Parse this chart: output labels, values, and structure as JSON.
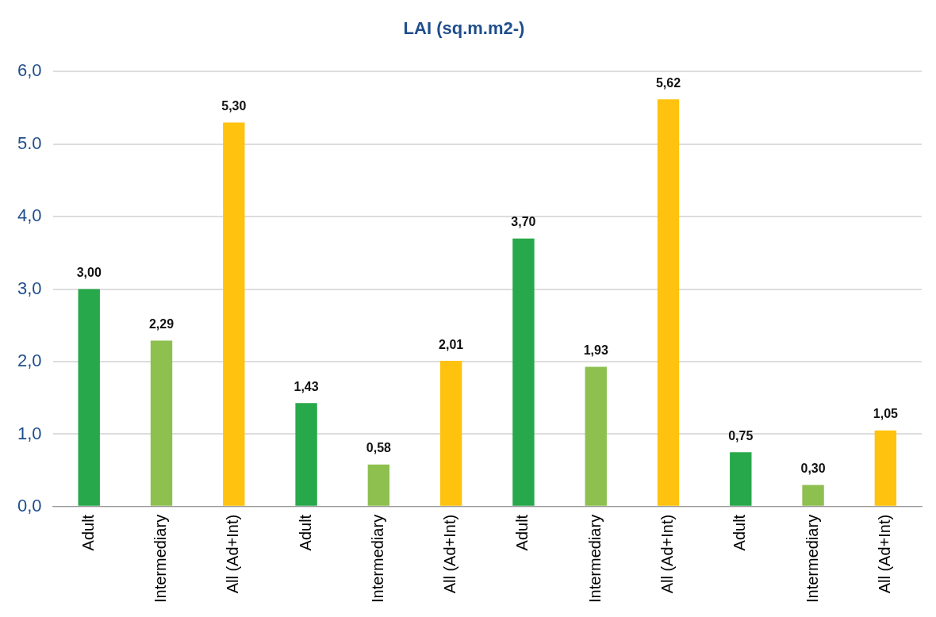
{
  "chart_data": {
    "type": "bar",
    "title": "LAI (sq.m.m2-)",
    "categories": [
      "Adult",
      "Intermediary",
      "All (Ad+Int)",
      "Adult",
      "Intermediary",
      "All (Ad+Int)",
      "Adult",
      "Intermediary",
      "All (Ad+Int)",
      "Adult",
      "Intermediary",
      "All (Ad+Int)"
    ],
    "values": [
      3.0,
      2.29,
      5.3,
      1.43,
      0.58,
      2.01,
      3.7,
      1.93,
      5.62,
      0.75,
      0.3,
      1.05
    ],
    "colors": [
      "#27a84a",
      "#8dc04f",
      "#ffc20e",
      "#27a84a",
      "#8dc04f",
      "#ffc20e",
      "#27a84a",
      "#8dc04f",
      "#ffc20e",
      "#27a84a",
      "#8dc04f",
      "#ffc20e"
    ],
    "value_labels": [
      "3,00",
      "2,29",
      "5,30",
      "1,43",
      "0,58",
      "2,01",
      "3,70",
      "1,93",
      "5,62",
      "0,75",
      "0,30",
      "1,05"
    ],
    "ylim": [
      0,
      6
    ],
    "yticks": [
      {
        "value": 0,
        "label": "0,0"
      },
      {
        "value": 1,
        "label": "1,0"
      },
      {
        "value": 2,
        "label": "2,0"
      },
      {
        "value": 3,
        "label": "3,0"
      },
      {
        "value": 4,
        "label": "4,0"
      },
      {
        "value": 5,
        "label": "5.0"
      },
      {
        "value": 6,
        "label": "6,0"
      }
    ],
    "grid": "y",
    "legend": false
  }
}
